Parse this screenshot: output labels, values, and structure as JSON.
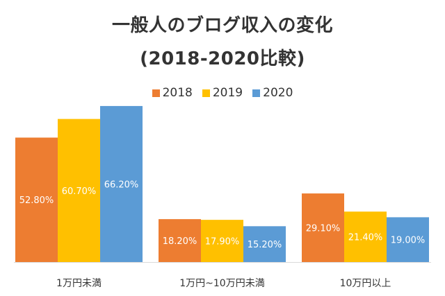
{
  "chart_data": {
    "type": "bar",
    "title": "一般人のブログ収入の変化",
    "subtitle": "(2018-2020比較)",
    "legend_position": "top",
    "categories": [
      "1万円未満",
      "1万円~10万円未満",
      "10万円以上"
    ],
    "series": [
      {
        "name": "2018",
        "color": "#ED7D31",
        "values": [
          52.8,
          18.2,
          29.1
        ],
        "labels": [
          "52.80%",
          "18.20%",
          "29.10%"
        ]
      },
      {
        "name": "2019",
        "color": "#FFC000",
        "values": [
          60.7,
          17.9,
          21.4
        ],
        "labels": [
          "60.70%",
          "17.90%",
          "21.40%"
        ]
      },
      {
        "name": "2020",
        "color": "#5B9BD5",
        "values": [
          66.2,
          15.2,
          19.0
        ],
        "labels": [
          "66.20%",
          "15.20%",
          "19.00%"
        ]
      }
    ],
    "ylim": [
      0,
      70
    ],
    "grid": false,
    "axis_line_color": "#D9D9D9"
  }
}
